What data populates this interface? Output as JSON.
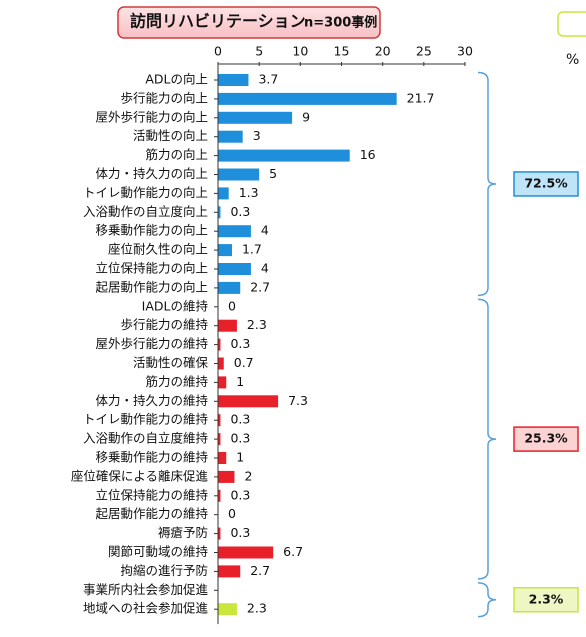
{
  "chart_data": {
    "type": "bar",
    "orientation": "horizontal",
    "title": "訪問リハビリテーション",
    "subtitle": "n=300事例",
    "unit": "%",
    "xlim": [
      0,
      30
    ],
    "xticks": [
      0,
      5,
      10,
      15,
      20,
      25,
      30
    ],
    "series": [
      {
        "name": "72.5%",
        "color": "#1f8fdc",
        "box_color": "#bfe3f7",
        "categories": [
          "ADLの向上",
          "歩行能力の向上",
          "屋外歩行能力の向上",
          "活動性の向上",
          "筋力の向上",
          "体力・持久力の向上",
          "トイレ動作能力の向上",
          "入浴動作の自立度向上",
          "移乗動作能力の向上",
          "座位耐久性の向上",
          "立位保持能力の向上",
          "起居動作能力の向上"
        ],
        "values": [
          3.7,
          21.7,
          9,
          3,
          16,
          5,
          1.3,
          0.3,
          4,
          1.7,
          4,
          2.7
        ]
      },
      {
        "name": "25.3%",
        "color": "#e8202a",
        "box_color": "#fbd3d3",
        "categories": [
          "IADLの維持",
          "歩行能力の維持",
          "屋外歩行能力の維持",
          "活動性の確保",
          "筋力の維持",
          "体力・持久力の維持",
          "トイレ動作能力の維持",
          "入浴動作の自立度維持",
          "移乗動作能力の維持",
          "座位確保による離床促進",
          "立位保持能力の維持",
          "起居動作能力の維持",
          "褥瘡予防",
          "関節可動域の維持",
          "拘縮の進行予防"
        ],
        "values": [
          0,
          2.3,
          0.3,
          0.7,
          1,
          7.3,
          0.3,
          0.3,
          1,
          2,
          0.3,
          0,
          0.3,
          6.7,
          2.7
        ]
      },
      {
        "name": "2.3%",
        "color": "#c8e63c",
        "box_color": "#eef7c4",
        "categories": [
          "事業所内社会参加促進",
          "地域への社会参加促進"
        ],
        "values": [
          null,
          2.3
        ]
      }
    ]
  }
}
